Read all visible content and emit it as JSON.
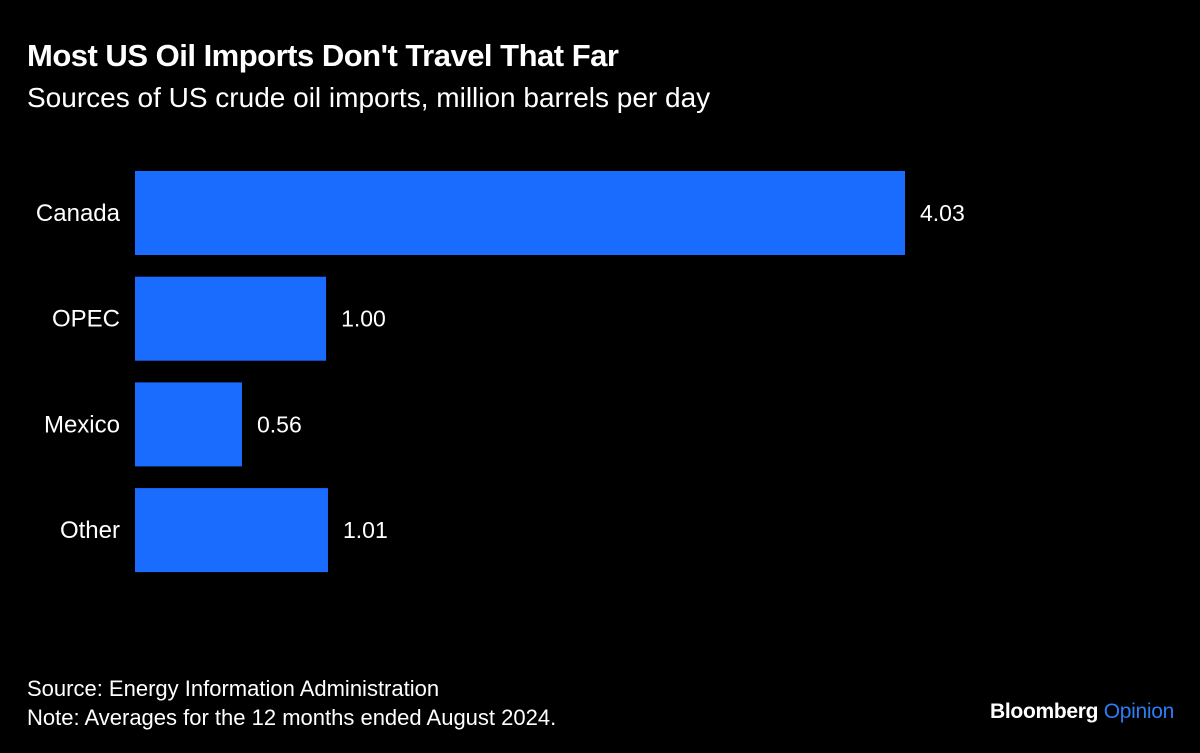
{
  "chart_data": {
    "type": "bar",
    "orientation": "horizontal",
    "title": "Most US Oil Imports Don't Travel That Far",
    "subtitle": "Sources of US crude oil imports, million barrels per day",
    "categories": [
      "Canada",
      "OPEC",
      "Mexico",
      "Other"
    ],
    "values": [
      4.03,
      1.0,
      0.56,
      1.01
    ],
    "data_labels": [
      "4.03",
      "1.00",
      "0.56",
      "1.01"
    ],
    "xlim": [
      0,
      4.03
    ],
    "grid": false,
    "bar_color": "#1a6cff",
    "background": "#000000"
  },
  "footer": {
    "source": "Source: Energy Information Administration",
    "note": "Note: Averages for the 12 months ended August 2024."
  },
  "logo": {
    "brand": "Bloomberg",
    "section": "Opinion"
  }
}
